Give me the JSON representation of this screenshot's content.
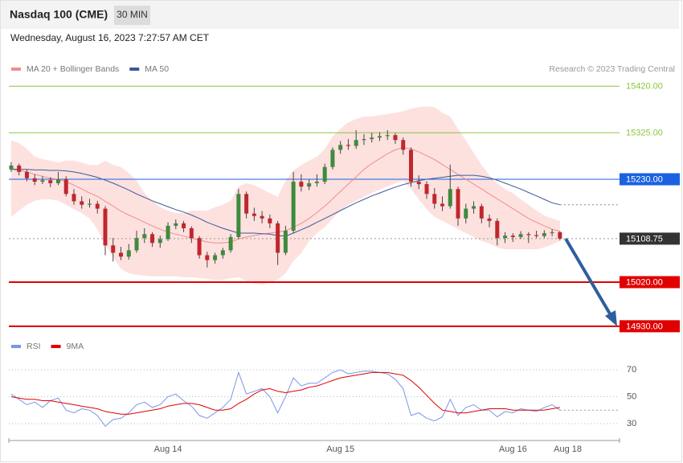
{
  "header": {
    "title": "Nasdaq 100 (CME)",
    "interval": "30 MIN",
    "datetime": "Wednesday, August 16, 2023 7:27:57 AM CET",
    "credit": "Research © 2023 Trading Central"
  },
  "chart_data": [
    {
      "type": "candlestick",
      "x": [
        0,
        1,
        2,
        3,
        4,
        5,
        6,
        7,
        8,
        9,
        10,
        11,
        12,
        13,
        14,
        15,
        16,
        17,
        18,
        19,
        20,
        21,
        22,
        23,
        24,
        25,
        26,
        27,
        28,
        29,
        30,
        31,
        32,
        33,
        34,
        35,
        36,
        37,
        38,
        39,
        40,
        41,
        42,
        43,
        44,
        45,
        46,
        47,
        48,
        49,
        50,
        51,
        52,
        53,
        54,
        55,
        56,
        57,
        58,
        59,
        60,
        61,
        62,
        63,
        64,
        65,
        66,
        67,
        68,
        69,
        70
      ],
      "open": [
        15250,
        15258,
        15245,
        15232,
        15225,
        15228,
        15222,
        15230,
        15200,
        15185,
        15178,
        15180,
        15170,
        15095,
        15080,
        15072,
        15085,
        15110,
        15118,
        15100,
        15108,
        15135,
        15140,
        15130,
        15110,
        15075,
        15065,
        15075,
        15085,
        15112,
        15200,
        15160,
        15155,
        15150,
        15140,
        15080,
        15125,
        15225,
        15215,
        15222,
        15225,
        15255,
        15290,
        15300,
        15298,
        15310,
        15312,
        15315,
        15318,
        15320,
        15310,
        15290,
        15225,
        15220,
        15200,
        15180,
        15175,
        15210,
        15150,
        15170,
        15175,
        15150,
        15145,
        15110,
        15115,
        15112,
        15118,
        15116,
        15114,
        15120,
        15122
      ],
      "high": [
        15265,
        15262,
        15250,
        15240,
        15236,
        15234,
        15245,
        15236,
        15210,
        15195,
        15190,
        15186,
        15175,
        15110,
        15092,
        15098,
        15125,
        15130,
        15122,
        15115,
        15142,
        15148,
        15145,
        15134,
        15114,
        15082,
        15080,
        15090,
        15118,
        15210,
        15205,
        15172,
        15165,
        15158,
        15145,
        15135,
        15245,
        15240,
        15230,
        15240,
        15262,
        15295,
        15308,
        15312,
        15330,
        15322,
        15325,
        15326,
        15330,
        15324,
        15315,
        15295,
        15238,
        15226,
        15212,
        15195,
        15260,
        15215,
        15180,
        15185,
        15180,
        15158,
        15150,
        15122,
        15120,
        15124,
        15122,
        15125,
        15126,
        15128,
        15124
      ],
      "low": [
        15245,
        15238,
        15226,
        15218,
        15220,
        15214,
        15218,
        15195,
        15178,
        15170,
        15172,
        15160,
        15075,
        15062,
        15065,
        15066,
        15080,
        15100,
        15092,
        15090,
        15104,
        15128,
        15122,
        15100,
        15068,
        15050,
        15058,
        15068,
        15080,
        15108,
        15150,
        15145,
        15140,
        15130,
        15055,
        15075,
        15120,
        15205,
        15208,
        15215,
        15220,
        15250,
        15282,
        15290,
        15292,
        15300,
        15305,
        15308,
        15310,
        15302,
        15280,
        15215,
        15210,
        15190,
        15170,
        15165,
        15170,
        15135,
        15140,
        15160,
        15140,
        15132,
        15095,
        15100,
        15102,
        15108,
        15100,
        15110,
        15110,
        15114,
        15105
      ],
      "close": [
        15258,
        15245,
        15232,
        15225,
        15228,
        15222,
        15230,
        15200,
        15185,
        15178,
        15180,
        15170,
        15095,
        15080,
        15072,
        15085,
        15110,
        15118,
        15100,
        15108,
        15135,
        15140,
        15130,
        15110,
        15075,
        15065,
        15075,
        15085,
        15112,
        15200,
        15160,
        15155,
        15150,
        15140,
        15080,
        15125,
        15225,
        15215,
        15222,
        15225,
        15255,
        15290,
        15300,
        15298,
        15310,
        15312,
        15315,
        15318,
        15320,
        15310,
        15290,
        15225,
        15220,
        15200,
        15180,
        15175,
        15210,
        15150,
        15170,
        15175,
        15150,
        15145,
        15110,
        15115,
        15112,
        15118,
        15116,
        15114,
        15120,
        15122,
        15108.75
      ],
      "up_color": "#3d8b3d",
      "down_color": "#c0272d",
      "xlim": [
        -0.3,
        77.6
      ],
      "ylim": [
        14915,
        15440
      ],
      "levels": [
        {
          "value": 15420,
          "label": "15420.00",
          "color": "#8cc63f",
          "box": false,
          "line": "solid"
        },
        {
          "value": 15325,
          "label": "15325.00",
          "color": "#8cc63f",
          "box": false,
          "line": "solid"
        },
        {
          "value": 15230,
          "label": "15230.00",
          "color": "#1a62e0",
          "box": true,
          "line": "solid"
        },
        {
          "value": 15108.75,
          "label": "15108.75",
          "color": "#333333",
          "box": true,
          "line": "dotted"
        },
        {
          "value": 15020,
          "label": "15020.00",
          "color": "#e00000",
          "box": true,
          "line": "solid"
        },
        {
          "value": 14930,
          "label": "14930.00",
          "color": "#e00000",
          "box": true,
          "line": "solid"
        }
      ],
      "series": [
        {
          "name": "MA 20 + Bollinger Bands",
          "color": "#f08c8c",
          "band_color": "#fde1df",
          "values": [
            15250,
            15248,
            15245,
            15240,
            15236,
            15232,
            15230,
            15225,
            15218,
            15210,
            15202,
            15195,
            15185,
            15175,
            15165,
            15157,
            15150,
            15142,
            15135,
            15128,
            15122,
            15118,
            15114,
            15110,
            15106,
            15102,
            15100,
            15100,
            15102,
            15108,
            15112,
            15115,
            15118,
            15120,
            15122,
            15125,
            15132,
            15140,
            15150,
            15162,
            15175,
            15190,
            15205,
            15220,
            15235,
            15250,
            15262,
            15272,
            15282,
            15290,
            15295,
            15292,
            15286,
            15278,
            15270,
            15260,
            15250,
            15240,
            15230,
            15220,
            15210,
            15200,
            15190,
            15180,
            15170,
            15160,
            15150,
            15142,
            15135,
            15128,
            15124
          ],
          "upper": [
            15309,
            15304,
            15292,
            15276,
            15271,
            15268,
            15264,
            15268,
            15268,
            15264,
            15259,
            15259,
            15268,
            15259,
            15255,
            15243,
            15227,
            15202,
            15186,
            15173,
            15166,
            15161,
            15161,
            15166,
            15166,
            15166,
            15173,
            15178,
            15186,
            15215,
            15222,
            15218,
            15210,
            15202,
            15194,
            15227,
            15248,
            15259,
            15268,
            15276,
            15292,
            15317,
            15333,
            15346,
            15353,
            15358,
            15358,
            15361,
            15363,
            15366,
            15369,
            15374,
            15377,
            15379,
            15377,
            15366,
            15358,
            15333,
            15309,
            15284,
            15259,
            15238,
            15222,
            15210,
            15202,
            15189,
            15178,
            15166,
            15156,
            15150,
            15145
          ],
          "lower": [
            15153,
            15166,
            15178,
            15186,
            15189,
            15189,
            15186,
            15178,
            15169,
            15161,
            15150,
            15128,
            15096,
            15071,
            15047,
            15038,
            15035,
            15033,
            15032,
            15032,
            15032,
            15032,
            15030,
            15030,
            15028,
            15027,
            15025,
            15025,
            15028,
            15030,
            15022,
            15017,
            15015,
            15019,
            15025,
            15038,
            15063,
            15079,
            15104,
            15120,
            15132,
            15150,
            15166,
            15178,
            15186,
            15194,
            15202,
            15209,
            15215,
            15222,
            15227,
            15210,
            15189,
            15169,
            15153,
            15145,
            15137,
            15128,
            15120,
            15112,
            15104,
            15099,
            15091,
            15087,
            15087,
            15087,
            15087,
            15087,
            15091,
            15097,
            15104
          ]
        },
        {
          "name": "MA 50",
          "color": "#3b5998",
          "values": [
            15251,
            15250,
            15250,
            15249,
            15249,
            15248,
            15248,
            15247,
            15245,
            15242,
            15238,
            15234,
            15228,
            15222,
            15215,
            15208,
            15200,
            15193,
            15186,
            15180,
            15174,
            15168,
            15163,
            15157,
            15150,
            15142,
            15136,
            15130,
            15125,
            15120,
            15120,
            15120,
            15119,
            15118,
            15115,
            15114,
            15120,
            15127,
            15134,
            15142,
            15150,
            15158,
            15166,
            15174,
            15182,
            15189,
            15196,
            15202,
            15208,
            15214,
            15219,
            15223,
            15227,
            15230,
            15232,
            15234,
            15236,
            15238,
            15238,
            15238,
            15236,
            15233,
            15228,
            15222,
            15216,
            15210,
            15203,
            15196,
            15189,
            15182,
            15178
          ]
        }
      ]
    },
    {
      "type": "line",
      "x": [
        0,
        1,
        2,
        3,
        4,
        5,
        6,
        7,
        8,
        9,
        10,
        11,
        12,
        13,
        14,
        15,
        16,
        17,
        18,
        19,
        20,
        21,
        22,
        23,
        24,
        25,
        26,
        27,
        28,
        29,
        30,
        31,
        32,
        33,
        34,
        35,
        36,
        37,
        38,
        39,
        40,
        41,
        42,
        43,
        44,
        45,
        46,
        47,
        48,
        49,
        50,
        51,
        52,
        53,
        54,
        55,
        56,
        57,
        58,
        59,
        60,
        61,
        62,
        63,
        64,
        65,
        66,
        67,
        68,
        69,
        70
      ],
      "series": [
        {
          "name": "RSI",
          "color": "#7b96e8",
          "values": [
            52,
            48,
            44,
            46,
            42,
            47,
            49,
            40,
            38,
            41,
            40,
            36,
            28,
            33,
            34,
            38,
            44,
            46,
            42,
            44,
            50,
            52,
            47,
            43,
            36,
            34,
            38,
            42,
            48,
            68,
            52,
            54,
            56,
            50,
            38,
            50,
            64,
            58,
            60,
            60,
            64,
            68,
            70,
            67,
            68,
            69,
            69,
            68,
            67,
            63,
            56,
            36,
            38,
            34,
            32,
            35,
            48,
            36,
            42,
            44,
            40,
            40,
            35,
            39,
            38,
            41,
            40,
            39,
            42,
            44,
            40
          ]
        },
        {
          "name": "9MA",
          "color": "#e00000",
          "values": [
            50,
            49,
            48,
            48,
            47,
            47,
            46,
            45,
            44,
            43,
            42,
            41,
            39,
            38,
            37,
            37,
            38,
            39,
            40,
            41,
            43,
            44,
            45,
            45,
            44,
            42,
            40,
            40,
            41,
            45,
            48,
            52,
            55,
            56,
            54,
            53,
            54,
            55,
            57,
            58,
            60,
            62,
            64,
            65,
            66,
            67,
            68,
            68,
            68,
            67,
            66,
            62,
            57,
            51,
            45,
            40,
            39,
            38,
            38,
            39,
            40,
            41,
            41,
            41,
            40,
            40,
            40,
            40,
            40,
            41,
            42
          ]
        }
      ],
      "xlim": [
        -0.3,
        77.6
      ],
      "ylim": [
        18,
        82
      ],
      "yticks": [
        70,
        50,
        30
      ],
      "grid": true,
      "xticks": [
        {
          "value": 20,
          "label": "Aug 14"
        },
        {
          "value": 42,
          "label": "Aug 15"
        },
        {
          "value": 64,
          "label": "Aug 16"
        },
        {
          "value": 71,
          "label": "Aug 18"
        }
      ]
    }
  ]
}
